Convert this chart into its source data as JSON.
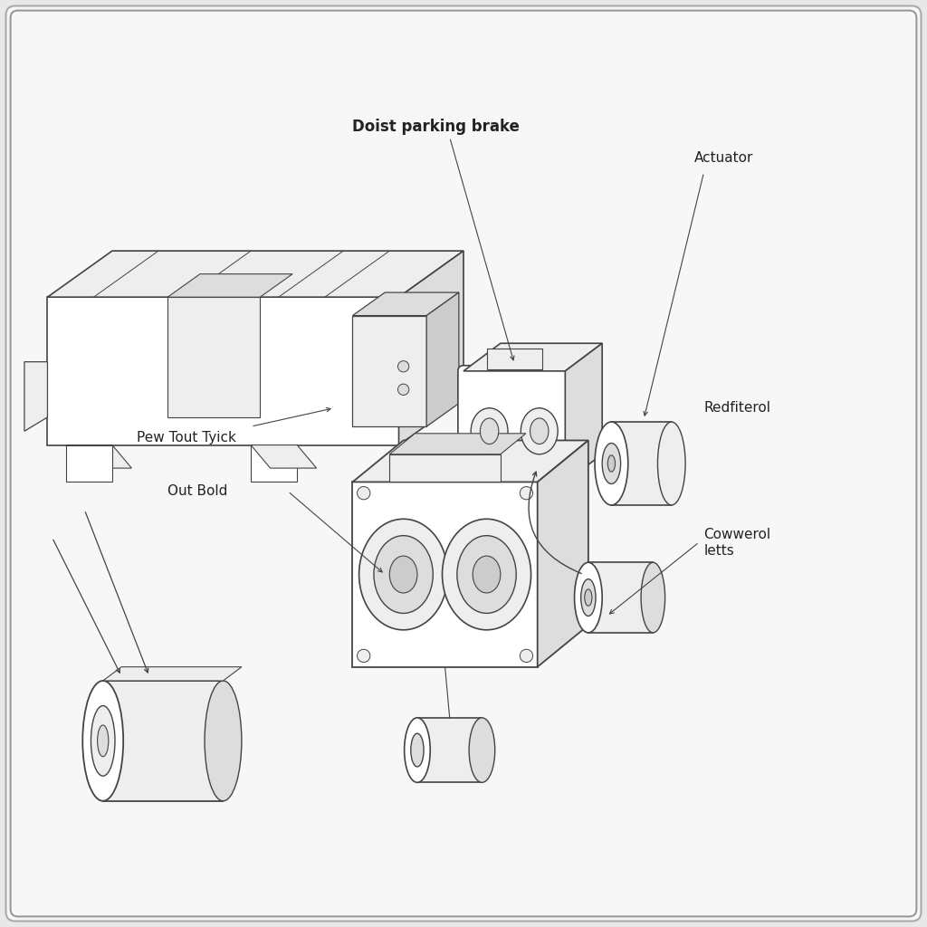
{
  "background_color": "#e8e8e8",
  "inner_bg_color": "#f7f7f7",
  "border_color": "#999999",
  "line_color": "#444444",
  "text_color": "#222222",
  "labels": {
    "doist_parking_brake": "Doist parking brake",
    "actuator": "Actuator",
    "pew_tout_tyick": "Pew Tout Tyick",
    "out_bold": "Out Bold",
    "redfiterol": "Redfiterol",
    "cowwerol_letts": "Cowwerol\nletts"
  },
  "font_size": 11,
  "fig_size": [
    10.24,
    10.24
  ],
  "dpi": 100
}
